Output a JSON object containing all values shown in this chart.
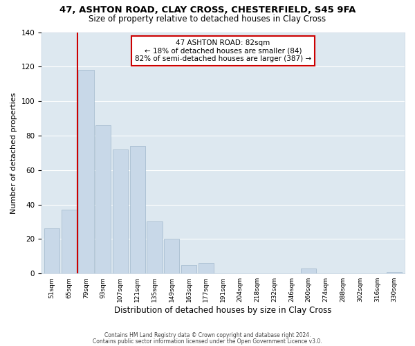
{
  "title": "47, ASHTON ROAD, CLAY CROSS, CHESTERFIELD, S45 9FA",
  "subtitle": "Size of property relative to detached houses in Clay Cross",
  "xlabel": "Distribution of detached houses by size in Clay Cross",
  "ylabel": "Number of detached properties",
  "bin_labels": [
    "51sqm",
    "65sqm",
    "79sqm",
    "93sqm",
    "107sqm",
    "121sqm",
    "135sqm",
    "149sqm",
    "163sqm",
    "177sqm",
    "191sqm",
    "204sqm",
    "218sqm",
    "232sqm",
    "246sqm",
    "260sqm",
    "274sqm",
    "288sqm",
    "302sqm",
    "316sqm",
    "330sqm"
  ],
  "bar_heights": [
    26,
    37,
    118,
    86,
    72,
    74,
    30,
    20,
    5,
    6,
    0,
    0,
    0,
    0,
    0,
    3,
    0,
    0,
    0,
    0,
    1
  ],
  "bar_color": "#c8d8e8",
  "bar_edge_color": "#a0b8cc",
  "highlight_bar_index": 2,
  "highlight_color": "#cc0000",
  "annotation_line1": "47 ASHTON ROAD: 82sqm",
  "annotation_line2": "← 18% of detached houses are smaller (84)",
  "annotation_line3": "82% of semi-detached houses are larger (387) →",
  "annotation_box_color": "#ffffff",
  "annotation_box_edge": "#cc0000",
  "ylim": [
    0,
    140
  ],
  "yticks": [
    0,
    20,
    40,
    60,
    80,
    100,
    120,
    140
  ],
  "footer1": "Contains HM Land Registry data © Crown copyright and database right 2024.",
  "footer2": "Contains public sector information licensed under the Open Government Licence v3.0.",
  "background_color": "#ffffff",
  "grid_color": "#dde8f0"
}
